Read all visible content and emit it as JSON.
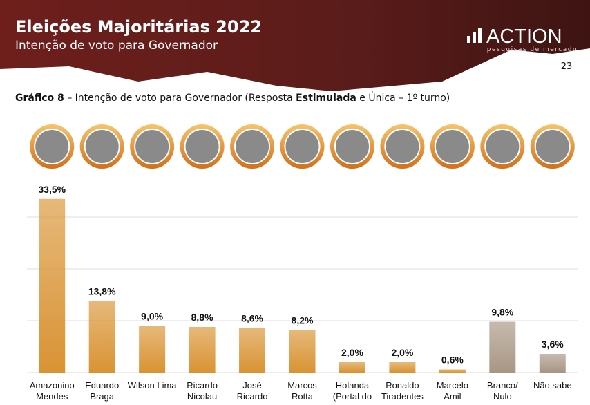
{
  "header": {
    "title": "Eleições Majoritárias 2022",
    "subtitle": "Intenção de voto para Governador",
    "logo": "ACTION",
    "logo_tagline": "pesquisas de mercado",
    "page_number": 23
  },
  "chart_data": {
    "type": "bar",
    "title_parts": [
      {
        "text": "Gráfico 8",
        "bold": true
      },
      {
        "text": " – Intenção de voto para Governador (Resposta "
      },
      {
        "text": "Estimulada",
        "bold": true
      },
      {
        "text": " e Única – 1º turno)"
      }
    ],
    "categories": [
      [
        "Amazonino",
        "Mendes"
      ],
      [
        "Eduardo",
        "Braga"
      ],
      [
        "Wilson Lima"
      ],
      [
        "Ricardo",
        "Nicolau"
      ],
      [
        "José",
        "Ricardo"
      ],
      [
        "Marcos",
        "Rotta"
      ],
      [
        "Holanda",
        "(Portal do"
      ],
      [
        "Ronaldo",
        "Tiradentes"
      ],
      [
        "Marcelo",
        "Amil"
      ],
      [
        "Branco/",
        "Nulo"
      ],
      [
        "Não sabe"
      ]
    ],
    "values": [
      33.5,
      13.8,
      9.0,
      8.8,
      8.6,
      8.2,
      2.0,
      2.0,
      0.6,
      9.8,
      3.6
    ],
    "value_labels": [
      "33,5%",
      "13,8%",
      "9,0%",
      "8,8%",
      "8,6%",
      "8,2%",
      "2,0%",
      "2,0%",
      "0,6%",
      "9,8%",
      "3,6%"
    ],
    "colors": [
      "#d99333",
      "#d99333",
      "#d99333",
      "#d99333",
      "#d99333",
      "#d99333",
      "#d99333",
      "#d99333",
      "#d99333",
      "#a89684",
      "#a89684"
    ],
    "ylim": [
      0,
      40
    ],
    "yticks": [
      0,
      10,
      20,
      30
    ],
    "ytick_labels": false,
    "grid": true
  }
}
